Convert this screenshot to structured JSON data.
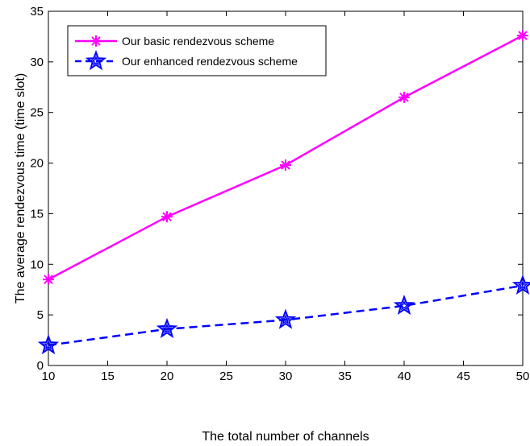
{
  "chart_data": {
    "type": "line",
    "title": "",
    "xlabel": "The total number of channels",
    "ylabel": "The average rendezvous time (time slot)",
    "xlim": [
      10,
      50
    ],
    "ylim": [
      0,
      35
    ],
    "xticks": [
      10,
      15,
      20,
      25,
      30,
      35,
      40,
      45,
      50
    ],
    "yticks": [
      0,
      5,
      10,
      15,
      20,
      25,
      30,
      35
    ],
    "grid": false,
    "legend_position": "top-left",
    "x": [
      10,
      20,
      30,
      40,
      50
    ],
    "series": [
      {
        "name": "Our basic rendezvous scheme",
        "values": [
          8.5,
          14.7,
          19.8,
          26.5,
          32.6
        ],
        "color": "#ff00ff",
        "line_style": "solid",
        "marker": "asterisk"
      },
      {
        "name": "Our enhanced rendezvous scheme",
        "values": [
          2.0,
          3.6,
          4.5,
          5.9,
          7.9
        ],
        "color": "#0000ff",
        "line_style": "dashed",
        "marker": "pentagram"
      }
    ]
  }
}
